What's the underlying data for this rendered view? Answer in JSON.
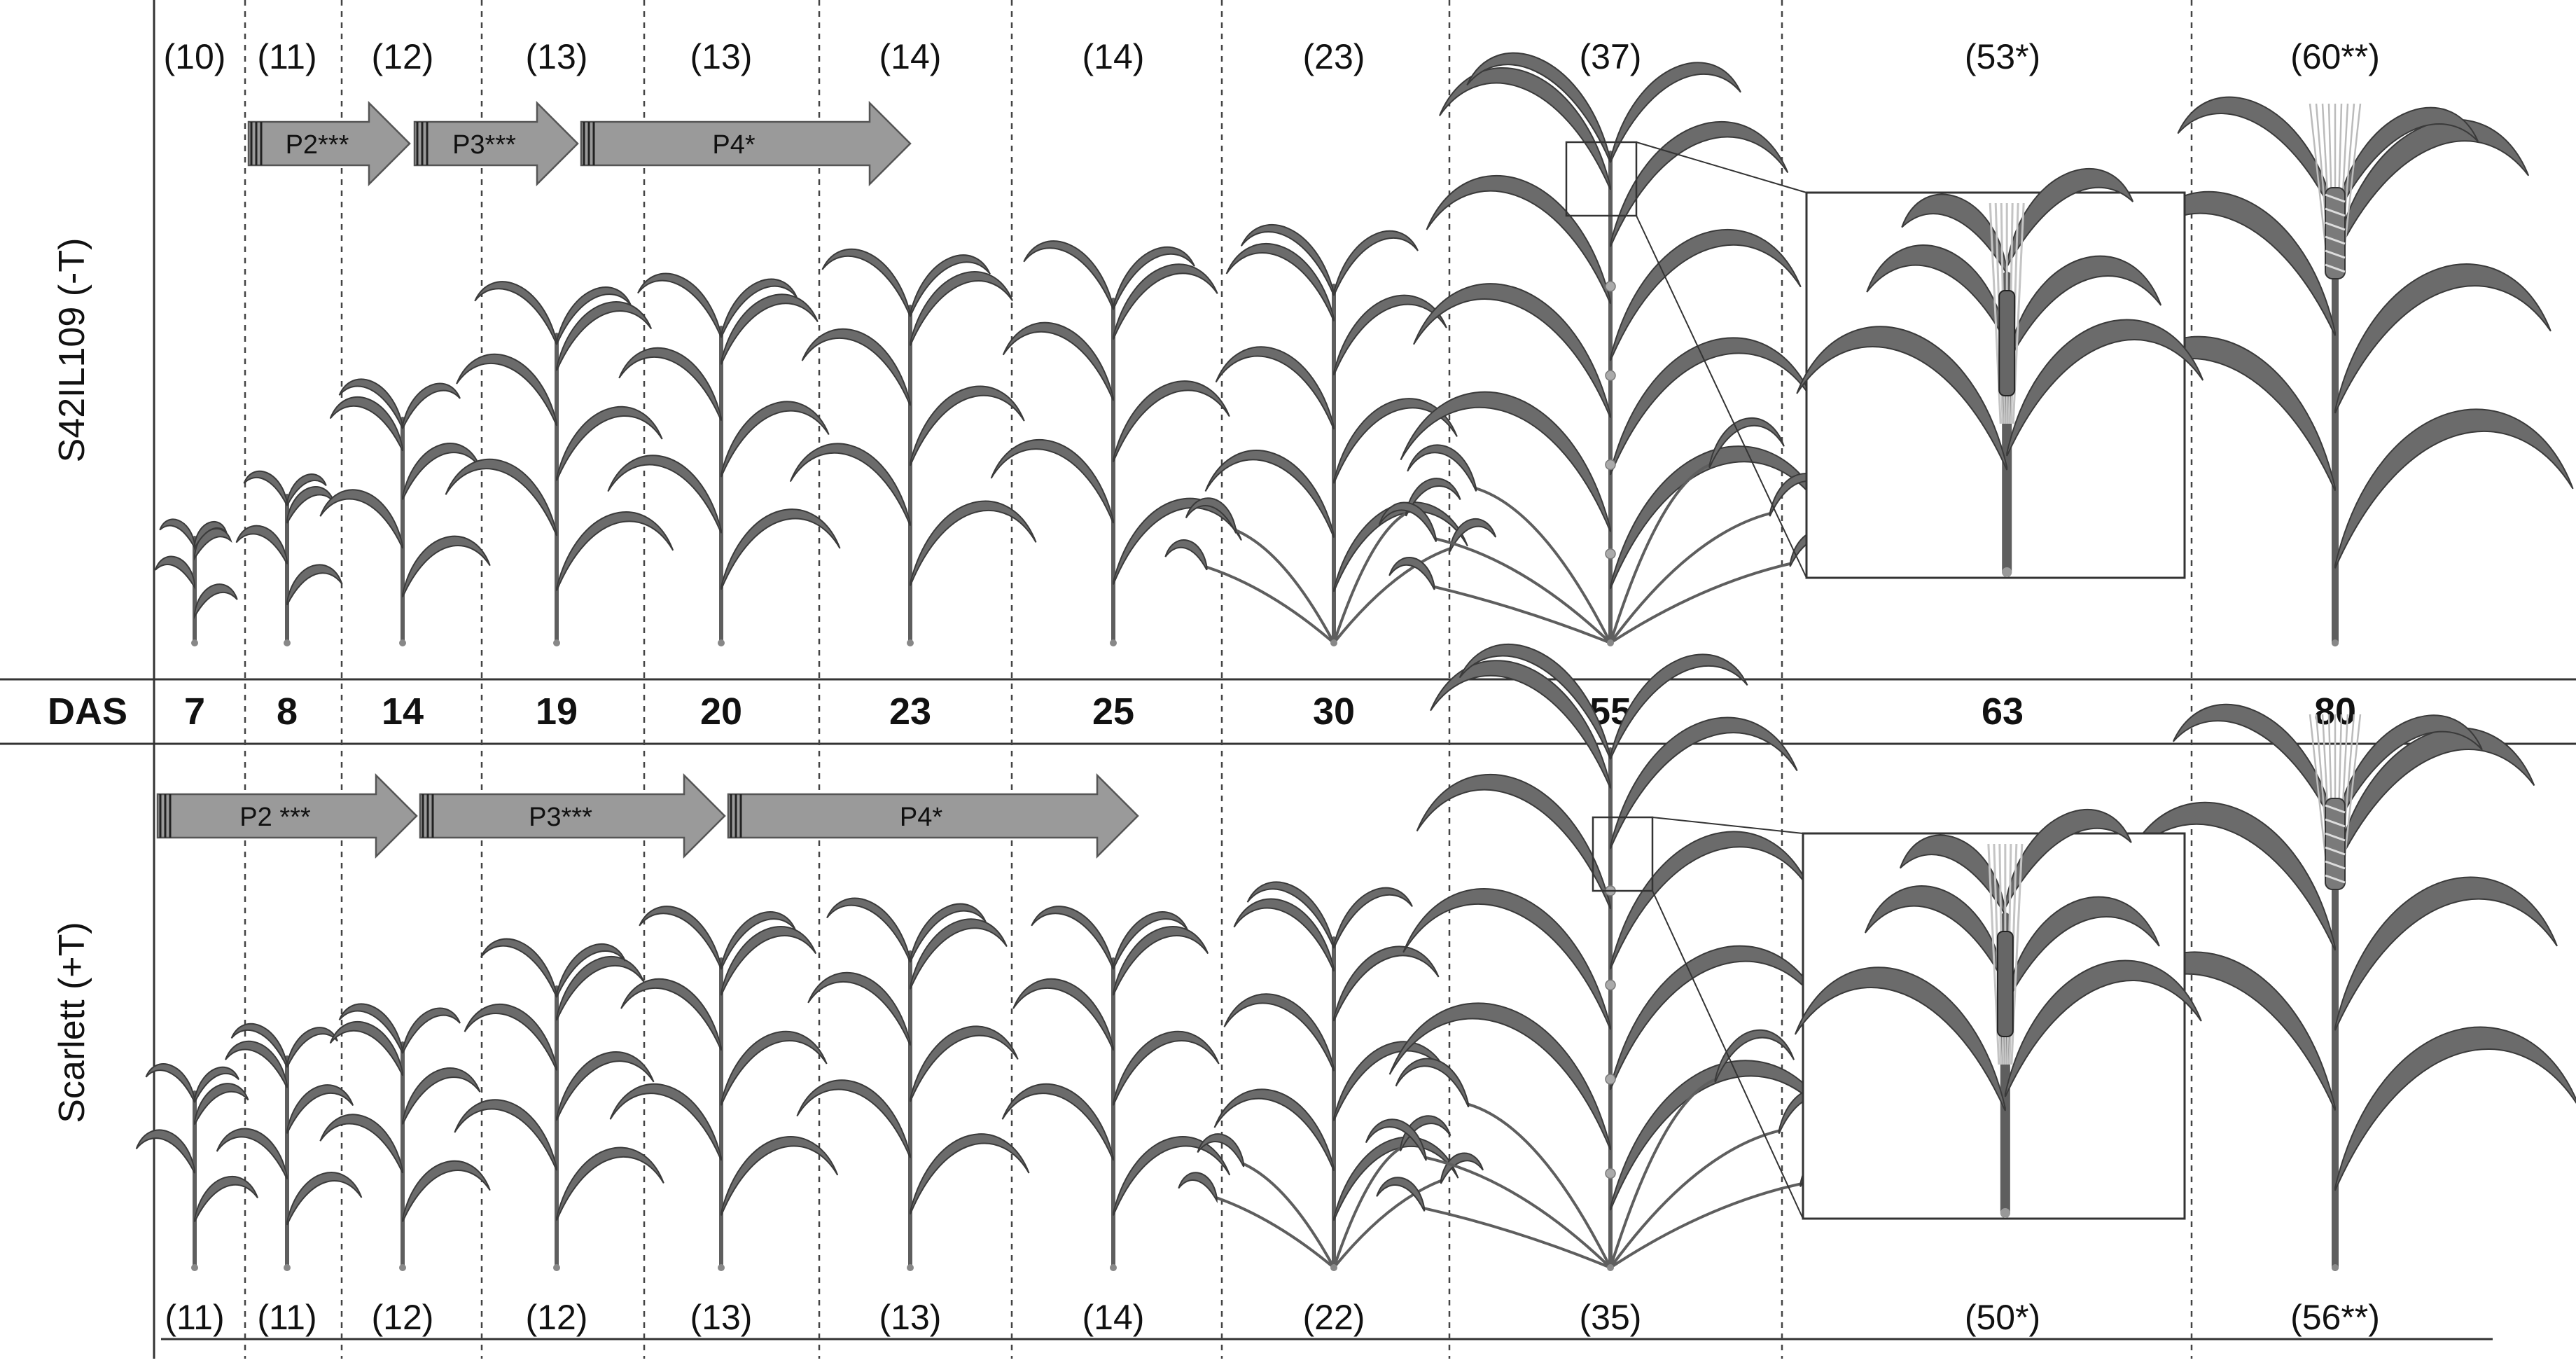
{
  "das_header": "DAS",
  "das_values": [
    "7",
    "8",
    "14",
    "19",
    "20",
    "23",
    "25",
    "30",
    "55",
    "63",
    "80"
  ],
  "genotypes": {
    "top": {
      "label": "S42IL109 (-T)",
      "leaf_counts": [
        "(10)",
        "(11)",
        "(12)",
        "(13)",
        "(13)",
        "(14)",
        "(14)",
        "(23)",
        "(37)",
        "(53*)",
        "(60**)"
      ],
      "phases": [
        "P2***",
        "P3***",
        "P4*"
      ]
    },
    "bottom": {
      "label": "Scarlett (+T)",
      "leaf_counts": [
        "(11)",
        "(11)",
        "(12)",
        "(12)",
        "(13)",
        "(13)",
        "(14)",
        "(22)",
        "(35)",
        "(50*)",
        "(56**)"
      ],
      "phases": [
        "P2 ***",
        "P3***",
        "P4*"
      ]
    }
  },
  "colors": {
    "leaf": "#6b6b6b",
    "stem": "#5e5e5e",
    "arrow_fill": "#9a9a9a",
    "line": "#333333"
  }
}
